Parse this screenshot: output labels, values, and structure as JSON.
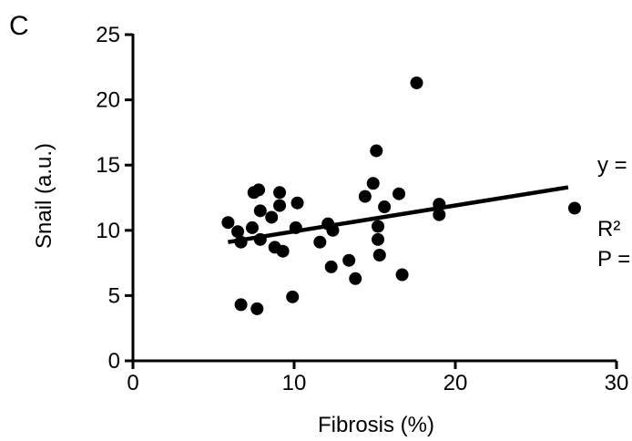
{
  "panel_label": "C",
  "chart_data": {
    "type": "scatter",
    "title": "",
    "xlabel": "Fibrosis (%)",
    "ylabel": "Snail (a.u.)",
    "xlim": [
      0,
      30
    ],
    "ylim": [
      0,
      25
    ],
    "xticks": [
      0,
      10,
      20,
      30
    ],
    "yticks": [
      0,
      5,
      10,
      15,
      20,
      25
    ],
    "grid": false,
    "points": [
      {
        "x": 5.9,
        "y": 10.6
      },
      {
        "x": 6.5,
        "y": 9.9
      },
      {
        "x": 6.7,
        "y": 9.1
      },
      {
        "x": 6.7,
        "y": 4.3
      },
      {
        "x": 7.4,
        "y": 10.2
      },
      {
        "x": 7.5,
        "y": 12.9
      },
      {
        "x": 7.7,
        "y": 3.99
      },
      {
        "x": 7.8,
        "y": 13.1
      },
      {
        "x": 7.9,
        "y": 11.5
      },
      {
        "x": 7.9,
        "y": 9.3
      },
      {
        "x": 8.6,
        "y": 11.0
      },
      {
        "x": 8.8,
        "y": 8.7
      },
      {
        "x": 9.1,
        "y": 12.9
      },
      {
        "x": 9.1,
        "y": 11.9
      },
      {
        "x": 9.3,
        "y": 8.4
      },
      {
        "x": 9.9,
        "y": 4.9
      },
      {
        "x": 10.1,
        "y": 10.2
      },
      {
        "x": 10.2,
        "y": 12.1
      },
      {
        "x": 11.6,
        "y": 9.1
      },
      {
        "x": 12.1,
        "y": 10.5
      },
      {
        "x": 12.3,
        "y": 7.2
      },
      {
        "x": 12.4,
        "y": 10.0
      },
      {
        "x": 13.4,
        "y": 7.7
      },
      {
        "x": 13.8,
        "y": 6.3
      },
      {
        "x": 14.4,
        "y": 12.6
      },
      {
        "x": 14.9,
        "y": 13.6
      },
      {
        "x": 15.1,
        "y": 16.1
      },
      {
        "x": 15.2,
        "y": 10.3
      },
      {
        "x": 15.2,
        "y": 9.3
      },
      {
        "x": 15.3,
        "y": 8.1
      },
      {
        "x": 15.6,
        "y": 11.8
      },
      {
        "x": 16.5,
        "y": 12.8
      },
      {
        "x": 16.7,
        "y": 6.6
      },
      {
        "x": 17.6,
        "y": 21.3
      },
      {
        "x": 19.0,
        "y": 12.0
      },
      {
        "x": 19.0,
        "y": 11.2
      },
      {
        "x": 27.4,
        "y": 11.7
      }
    ],
    "regression_line": {
      "x": [
        5.9,
        27.0
      ],
      "y": [
        9.1,
        13.3
      ]
    },
    "annotations": [
      "y =",
      "R²",
      "P ="
    ]
  }
}
